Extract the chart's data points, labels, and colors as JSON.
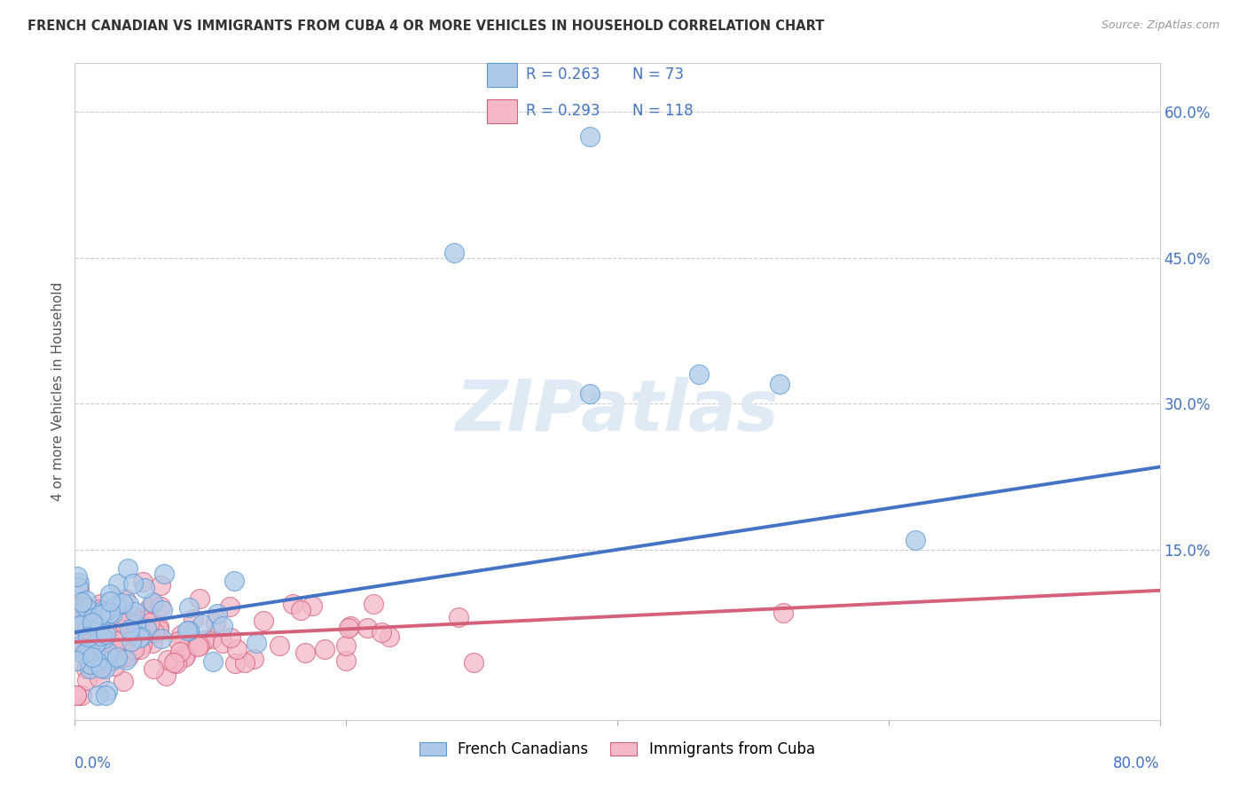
{
  "title": "FRENCH CANADIAN VS IMMIGRANTS FROM CUBA 4 OR MORE VEHICLES IN HOUSEHOLD CORRELATION CHART",
  "source": "Source: ZipAtlas.com",
  "ylabel": "4 or more Vehicles in Household",
  "series1_color": "#adc8e8",
  "series1_edge_color": "#5b9bd5",
  "series1_line_color": "#4472c4",
  "series1_label": "French Canadians",
  "series1_R": "0.263",
  "series1_N": "73",
  "series2_color": "#f4b8c8",
  "series2_edge_color": "#d4607a",
  "series2_line_color": "#d4607a",
  "series2_label": "Immigrants from Cuba",
  "series2_R": "0.293",
  "series2_N": "118",
  "background_color": "#ffffff",
  "grid_color": "#cccccc",
  "xmin": 0.0,
  "xmax": 0.8,
  "ymin": -0.025,
  "ymax": 0.65,
  "line1_start": 0.065,
  "line1_end": 0.235,
  "line2_start": 0.055,
  "line2_end": 0.108,
  "ytick_positions": [
    0.0,
    0.15,
    0.3,
    0.45,
    0.6
  ],
  "ytick_labels_right": [
    "",
    "15.0%",
    "30.0%",
    "45.0%",
    "60.0%"
  ]
}
